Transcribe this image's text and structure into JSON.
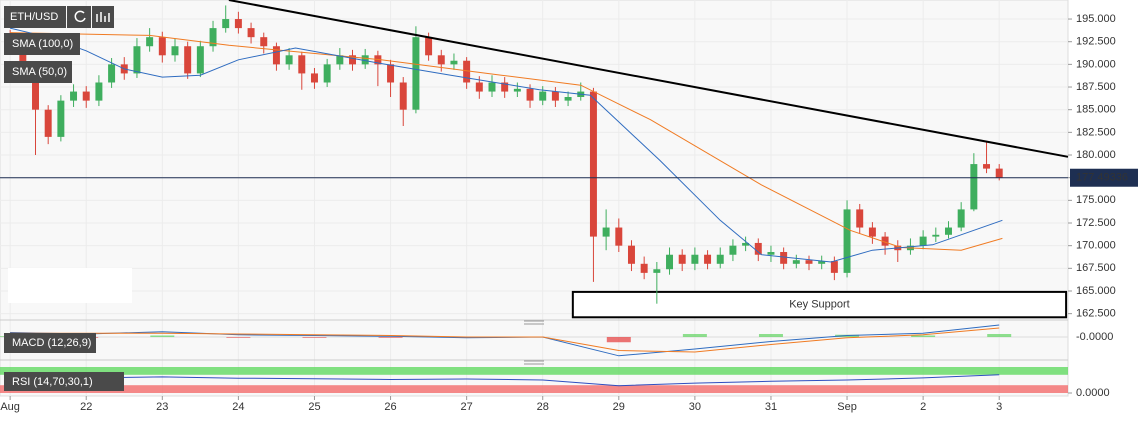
{
  "chart_data": {
    "type": "candlestick",
    "symbol": "ETH/USD",
    "x": [
      0,
      4,
      8,
      12,
      16,
      20,
      24,
      28,
      32,
      36,
      40,
      44,
      48,
      52,
      56,
      60,
      64,
      68,
      72,
      76,
      80,
      84,
      88,
      92,
      96,
      100,
      104,
      108,
      112,
      116,
      120,
      124,
      128,
      132,
      136,
      140,
      144,
      148,
      152,
      156,
      160,
      164,
      168,
      172,
      176,
      180,
      184,
      188,
      192,
      196,
      200,
      204,
      208,
      212,
      216,
      220,
      224,
      228,
      232,
      236,
      240,
      244,
      248,
      252,
      256,
      260,
      264,
      268,
      272,
      276,
      280,
      284,
      288,
      292,
      296,
      300,
      304,
      308,
      312
    ],
    "open": [
      193,
      192,
      189,
      185,
      182,
      186,
      187,
      186,
      188,
      190,
      189,
      192,
      193,
      191,
      192,
      189,
      192,
      194,
      195,
      194,
      193,
      192,
      190,
      191,
      189,
      188,
      190,
      191,
      190,
      191,
      190,
      188,
      185,
      193,
      191,
      190,
      190.4,
      188,
      187,
      188,
      187,
      187.3,
      186,
      187,
      186,
      186.4,
      187,
      171,
      172,
      170,
      168,
      167,
      167.4,
      169,
      168,
      169,
      168,
      169,
      170,
      170.3,
      169,
      169.3,
      168,
      168.4,
      168,
      168.3,
      167,
      174,
      172,
      171,
      170,
      169.5,
      170,
      171,
      171.2,
      172,
      174,
      179,
      178.5
    ],
    "high": [
      193.8,
      192.6,
      189.6,
      185.5,
      186.6,
      187.8,
      187.6,
      188.8,
      190.7,
      190.8,
      192.9,
      194,
      193.6,
      192.8,
      192.5,
      192.6,
      194.8,
      196.5,
      195.8,
      194.6,
      193.5,
      192.4,
      191.8,
      191.4,
      189.6,
      190.6,
      191.8,
      191.6,
      191.7,
      191.5,
      190.5,
      188.6,
      194.2,
      193.5,
      191.6,
      191.2,
      190.8,
      188.7,
      188.8,
      188.6,
      188,
      187.8,
      187.6,
      187.5,
      187,
      188,
      187.4,
      174,
      173,
      170.6,
      168.8,
      168.2,
      169.8,
      169.6,
      169.8,
      169.5,
      169.8,
      170.7,
      171,
      170.8,
      170,
      169.8,
      169,
      168.9,
      168.9,
      168.8,
      175,
      174.6,
      172.6,
      171.5,
      170.6,
      170.8,
      171.7,
      172,
      172.7,
      174.8,
      180.2,
      181.5,
      179
    ],
    "low": [
      191.2,
      188.2,
      180,
      181.2,
      181.5,
      185.3,
      185.2,
      185.4,
      187.4,
      188.3,
      188.5,
      191.4,
      190.2,
      190.3,
      188.4,
      188.6,
      191.4,
      193.5,
      193.4,
      192.3,
      191.2,
      189.3,
      189.4,
      187.2,
      187.3,
      187.5,
      189.4,
      189.3,
      189.5,
      187.6,
      186.4,
      183.2,
      184.6,
      190.4,
      189.2,
      189.4,
      187.3,
      186.2,
      186.4,
      186.3,
      186.4,
      185.2,
      185.5,
      185.3,
      185.4,
      186,
      166,
      169.5,
      169.3,
      167.2,
      166.3,
      163.6,
      166.8,
      167.2,
      167.3,
      167.4,
      167.5,
      168.3,
      169.4,
      168.3,
      168.2,
      167.4,
      167.5,
      167.3,
      167.4,
      166.2,
      166.5,
      171.3,
      170.2,
      169,
      168.2,
      169,
      169.6,
      170.4,
      170.8,
      171.6,
      173.8,
      178,
      177.2
    ],
    "close": [
      192,
      189,
      185,
      182,
      186,
      187,
      186,
      188,
      190,
      189,
      192,
      193,
      191,
      192,
      189,
      192,
      194,
      195,
      194,
      193,
      192,
      190,
      191,
      189,
      188,
      190,
      191,
      190,
      191,
      190,
      188,
      185,
      193,
      191,
      190,
      190.4,
      188,
      187,
      188,
      187,
      187.3,
      186,
      187,
      186,
      186.4,
      187,
      171,
      172,
      170,
      168,
      167,
      167.4,
      169,
      168,
      169,
      168,
      169,
      170,
      170.3,
      169,
      169.3,
      168,
      168.4,
      168,
      168.3,
      167,
      174,
      172,
      171,
      170,
      169.5,
      170,
      171,
      171.2,
      172,
      174,
      179,
      178.5,
      177.5
    ],
    "up_color": "#3fae5e",
    "down_color": "#d9463b",
    "xlim": [
      -3.2,
      333.7
    ],
    "xticks": [
      {
        "value": 0,
        "label": "Aug"
      },
      {
        "value": 24,
        "label": "22"
      },
      {
        "value": 48,
        "label": "23"
      },
      {
        "value": 72,
        "label": "24"
      },
      {
        "value": 96,
        "label": "25"
      },
      {
        "value": 120,
        "label": "26"
      },
      {
        "value": 144,
        "label": "27"
      },
      {
        "value": 168,
        "label": "28"
      },
      {
        "value": 192,
        "label": "29"
      },
      {
        "value": 216,
        "label": "30"
      },
      {
        "value": 240,
        "label": "31"
      },
      {
        "value": 264,
        "label": "Sep"
      },
      {
        "value": 288,
        "label": "2"
      },
      {
        "value": 312,
        "label": "3"
      }
    ],
    "ylim": [
      161.8,
      197.1
    ],
    "yticks": [
      {
        "value": 195,
        "label": "195.000"
      },
      {
        "value": 192.5,
        "label": "192.500"
      },
      {
        "value": 190,
        "label": "190.000"
      },
      {
        "value": 187.5,
        "label": "187.500"
      },
      {
        "value": 185,
        "label": "185.000"
      },
      {
        "value": 182.5,
        "label": "182.500"
      },
      {
        "value": 180,
        "label": "180.000"
      },
      {
        "value": 177.5,
        "label": "177.500"
      },
      {
        "value": 175,
        "label": "175.000"
      },
      {
        "value": 172.5,
        "label": "172.500"
      },
      {
        "value": 170,
        "label": "170.000"
      },
      {
        "value": 167.5,
        "label": "167.500"
      },
      {
        "value": 165,
        "label": "165.000"
      },
      {
        "value": 162.5,
        "label": "162.500"
      }
    ],
    "grid": true,
    "overlays": [
      {
        "name": "SMA (100,0)",
        "color": "#f07b23",
        "x": [
          0,
          44,
          69,
          117,
          155,
          180,
          202,
          237,
          265,
          281,
          300,
          313
        ],
        "values": [
          193.5,
          193.2,
          192.1,
          190.5,
          188.8,
          187.7,
          183.9,
          176.7,
          171.7,
          169.8,
          169.5,
          170.8
        ]
      },
      {
        "name": "SMA (50,0)",
        "color": "#2f6cc0",
        "x": [
          0,
          12,
          24,
          36,
          48,
          60,
          72,
          90,
          117,
          139,
          167,
          183,
          205,
          224,
          237,
          259,
          272,
          291,
          313
        ],
        "values": [
          194,
          193,
          191.5,
          189.5,
          188.6,
          188.8,
          190.5,
          191.8,
          190.1,
          188.8,
          187.2,
          186.6,
          179.4,
          172.8,
          169,
          168.2,
          169.5,
          170.1,
          172.8
        ]
      }
    ],
    "trendline": {
      "color": "#000000",
      "x": [
        69,
        333.7
      ],
      "values": [
        197.1,
        179.8
      ]
    },
    "last_price": 177.49336,
    "support_zone": {
      "label": "Key Support",
      "x": [
        177.5,
        333.1
      ],
      "values": [
        162.1,
        164.9
      ]
    },
    "macd": {
      "name": "MACD (12,26,9)",
      "x": [
        0,
        24,
        48,
        72,
        96,
        120,
        144,
        168,
        192,
        216,
        240,
        264,
        288,
        312
      ],
      "macd": [
        0.6,
        0.4,
        0.7,
        0.3,
        0.2,
        0.1,
        -0.1,
        0,
        -2.5,
        -1.6,
        -0.6,
        0.2,
        0.5,
        1.6
      ],
      "signal": [
        0.5,
        0.5,
        0.5,
        0.4,
        0.3,
        0.2,
        0,
        0,
        -1.8,
        -2,
        -1,
        -0.1,
        0.3,
        1.2
      ],
      "ylim": [
        -2.8,
        2
      ],
      "yticks": [
        {
          "value": 0,
          "label": "-0.0000"
        }
      ]
    },
    "rsi": {
      "name": "RSI (14,70,30,1)",
      "x": [
        0,
        24,
        48,
        72,
        96,
        120,
        144,
        168,
        192,
        216,
        240,
        264,
        288,
        312
      ],
      "values": [
        55,
        58,
        62,
        57,
        55,
        52,
        54,
        50,
        28,
        38,
        45,
        50,
        58,
        70
      ],
      "ylim": [
        0,
        100
      ],
      "yticks": [
        {
          "value": 0,
          "label": "0.0000"
        }
      ],
      "bands": [
        70,
        30
      ]
    }
  }
}
